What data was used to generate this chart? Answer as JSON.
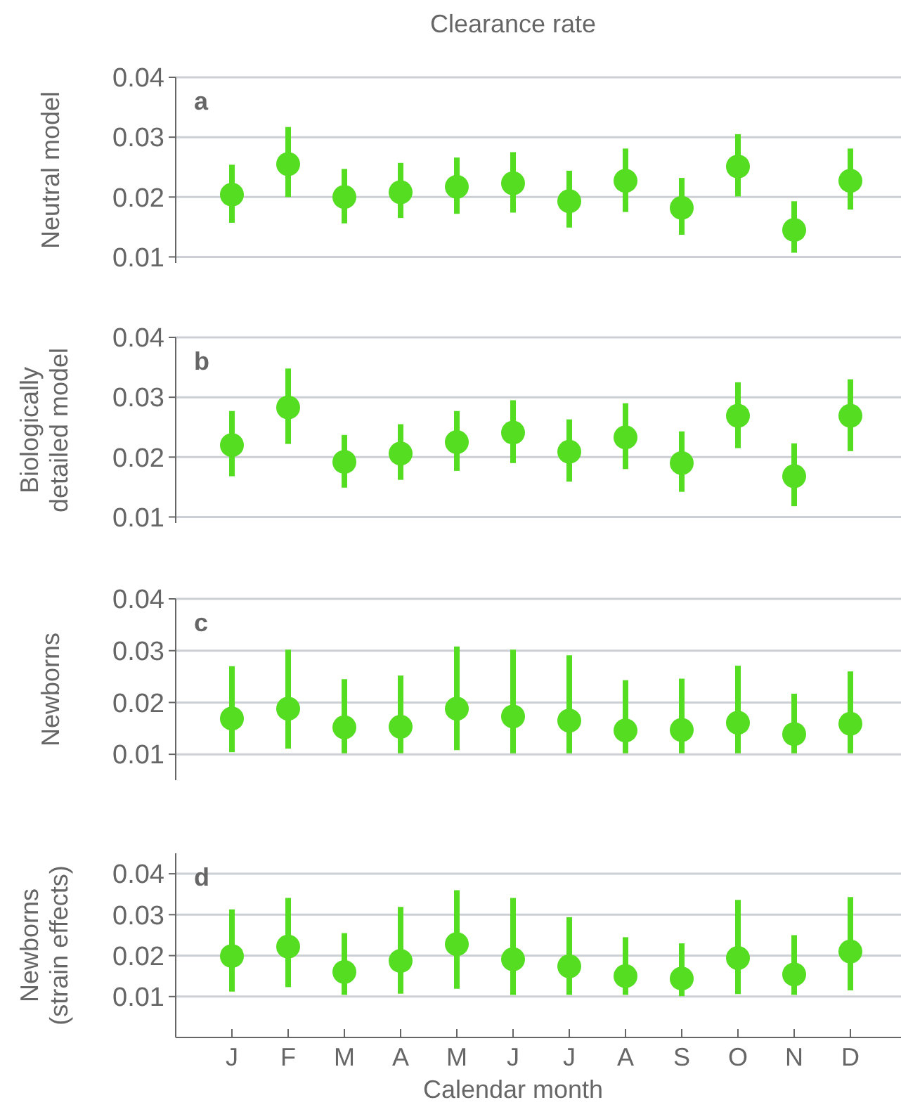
{
  "chart_data": [
    {
      "type": "scatter",
      "title": "Clearance rate",
      "ylabel": "Neutral model",
      "annotations": [
        "a"
      ],
      "categories": [
        null,
        null,
        null,
        null,
        null,
        null,
        null,
        null,
        null,
        null,
        null,
        null
      ],
      "marker": "circle",
      "grid": "y",
      "tick_labels": "y",
      "ylim": [
        0.009,
        0.04
      ],
      "yticks": [
        0.01,
        0.02,
        0.03,
        0.04
      ],
      "series": [
        {
          "color": "#55dd22",
          "values": [
            0.0204,
            0.0255,
            0.02,
            0.0208,
            0.0217,
            0.0223,
            0.0193,
            0.0227,
            0.0182,
            0.0251,
            0.0145,
            0.0227
          ],
          "errors": [
            [
              0.0157,
              0.0254
            ],
            [
              0.02,
              0.0317
            ],
            [
              0.0156,
              0.0247
            ],
            [
              0.0165,
              0.0257
            ],
            [
              0.0172,
              0.0266
            ],
            [
              0.0174,
              0.0275
            ],
            [
              0.0149,
              0.0244
            ],
            [
              0.0175,
              0.0281
            ],
            [
              0.0137,
              0.0232
            ],
            [
              0.0201,
              0.0305
            ],
            [
              0.0107,
              0.0193
            ],
            [
              0.0179,
              0.0281
            ]
          ]
        }
      ]
    },
    {
      "type": "scatter",
      "ylabel": "Biologically\ndetailed model",
      "annotations": [
        "b"
      ],
      "categories": [
        null,
        null,
        null,
        null,
        null,
        null,
        null,
        null,
        null,
        null,
        null,
        null
      ],
      "marker": "circle",
      "grid": "y",
      "tick_labels": "y",
      "ylim": [
        0.009,
        0.04
      ],
      "yticks": [
        0.01,
        0.02,
        0.03,
        0.04
      ],
      "series": [
        {
          "color": "#55dd22",
          "values": [
            0.022,
            0.0283,
            0.0192,
            0.0206,
            0.0225,
            0.0241,
            0.0209,
            0.0233,
            0.019,
            0.0269,
            0.0168,
            0.0269
          ],
          "errors": [
            [
              0.0168,
              0.0277
            ],
            [
              0.0222,
              0.0348
            ],
            [
              0.0149,
              0.0237
            ],
            [
              0.0162,
              0.0255
            ],
            [
              0.0177,
              0.0277
            ],
            [
              0.019,
              0.0295
            ],
            [
              0.0159,
              0.0263
            ],
            [
              0.018,
              0.029
            ],
            [
              0.0142,
              0.0243
            ],
            [
              0.0215,
              0.0325
            ],
            [
              0.0118,
              0.0223
            ],
            [
              0.021,
              0.033
            ]
          ]
        }
      ]
    },
    {
      "type": "scatter",
      "ylabel": "Newborns",
      "annotations": [
        "c"
      ],
      "categories": [
        null,
        null,
        null,
        null,
        null,
        null,
        null,
        null,
        null,
        null,
        null,
        null
      ],
      "marker": "circle",
      "grid": "y",
      "tick_labels": "y",
      "ylim": [
        0.005,
        0.04
      ],
      "yticks": [
        0.01,
        0.02,
        0.03,
        0.04
      ],
      "series": [
        {
          "color": "#55dd22",
          "values": [
            0.0169,
            0.0188,
            0.0152,
            0.0153,
            0.0188,
            0.0173,
            0.0165,
            0.0146,
            0.0147,
            0.0161,
            0.0139,
            0.0159
          ],
          "errors": [
            [
              0.0104,
              0.027
            ],
            [
              0.0111,
              0.0302
            ],
            [
              0.0102,
              0.0245
            ],
            [
              0.0102,
              0.0252
            ],
            [
              0.0108,
              0.0308
            ],
            [
              0.0102,
              0.0302
            ],
            [
              0.0102,
              0.0291
            ],
            [
              0.0102,
              0.0243
            ],
            [
              0.0102,
              0.0246
            ],
            [
              0.0102,
              0.0271
            ],
            [
              0.0102,
              0.0217
            ],
            [
              0.0102,
              0.026
            ]
          ]
        }
      ]
    },
    {
      "type": "scatter",
      "ylabel": "Newborns\n(strain effects)",
      "xlabel": "Calendar month",
      "annotations": [
        "d"
      ],
      "categories": [
        "J",
        "F",
        "M",
        "A",
        "M",
        "J",
        "J",
        "A",
        "S",
        "O",
        "N",
        "D"
      ],
      "marker": "circle",
      "grid": "y",
      "ylim": [
        0,
        0.045
      ],
      "yticks": [
        0.01,
        0.02,
        0.03,
        0.04
      ],
      "series": [
        {
          "color": "#55dd22",
          "values": [
            0.0199,
            0.0222,
            0.016,
            0.0187,
            0.0228,
            0.0191,
            0.0174,
            0.015,
            0.0144,
            0.0194,
            0.0154,
            0.021
          ],
          "errors": [
            [
              0.0112,
              0.0313
            ],
            [
              0.0123,
              0.0341
            ],
            [
              0.0104,
              0.0255
            ],
            [
              0.0107,
              0.0319
            ],
            [
              0.0119,
              0.036
            ],
            [
              0.0104,
              0.0341
            ],
            [
              0.0104,
              0.0294
            ],
            [
              0.0104,
              0.0245
            ],
            [
              0.0101,
              0.023
            ],
            [
              0.0106,
              0.0336
            ],
            [
              0.0104,
              0.025
            ],
            [
              0.0115,
              0.0343
            ]
          ]
        }
      ]
    }
  ]
}
